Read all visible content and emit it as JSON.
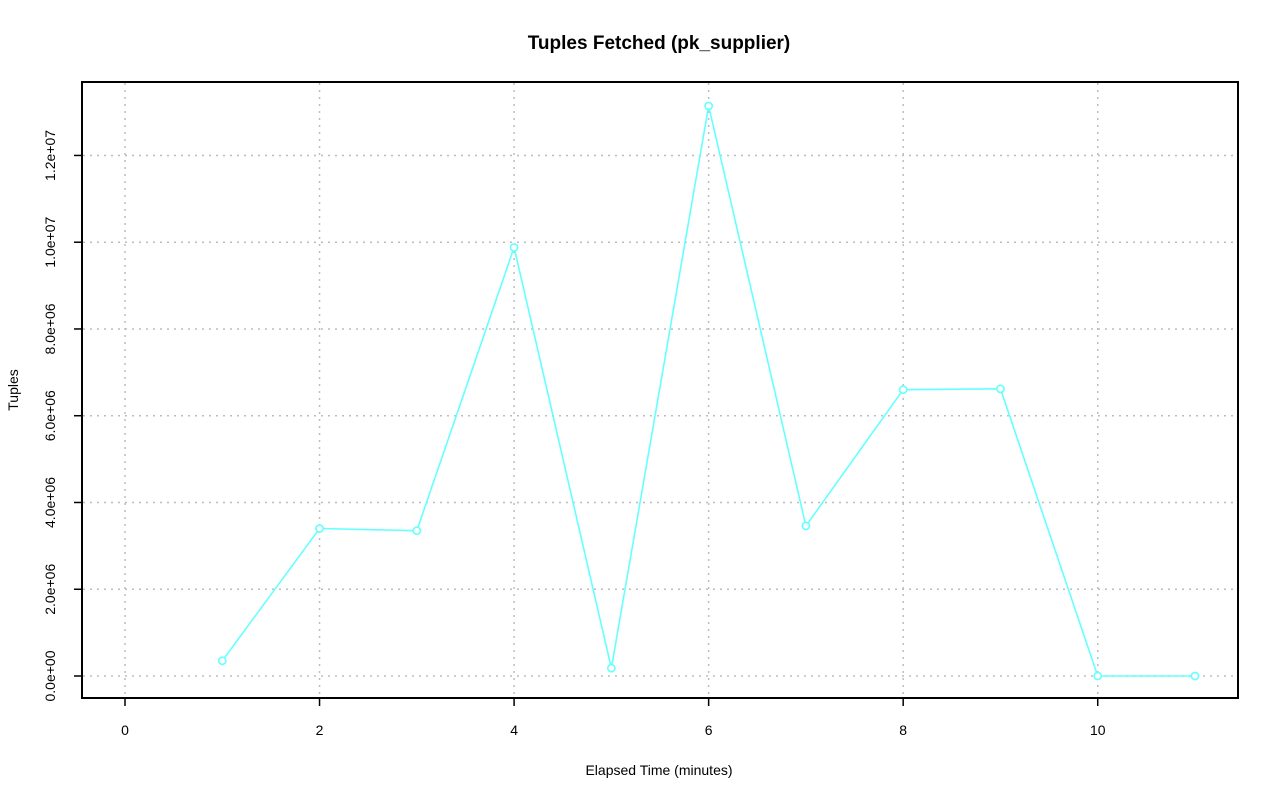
{
  "chart_data": {
    "type": "line",
    "title": "Tuples Fetched (pk_supplier)",
    "xlabel": "Elapsed Time (minutes)",
    "ylabel": "Tuples",
    "xlim": [
      0,
      11
    ],
    "ylim": [
      0,
      13140000
    ],
    "x_ticks": [
      0,
      2,
      4,
      6,
      8,
      10
    ],
    "x_tick_labels": [
      "0",
      "2",
      "4",
      "6",
      "8",
      "10"
    ],
    "y_ticks": [
      0,
      2000000,
      4000000,
      6000000,
      8000000,
      10000000,
      12000000
    ],
    "y_tick_labels": [
      "0.0e+00",
      "2.0e+06",
      "4.0e+06",
      "6.0e+06",
      "8.0e+06",
      "1.0e+07",
      "1.2e+07"
    ],
    "grid": true,
    "series": [
      {
        "color": "#66ffff",
        "x": [
          1,
          2,
          3,
          4,
          5,
          6,
          7,
          8,
          9,
          10,
          11
        ],
        "y": [
          350000,
          3400000,
          3350000,
          9880000,
          180000,
          13140000,
          3460000,
          6600000,
          6620000,
          0,
          0
        ]
      }
    ]
  }
}
